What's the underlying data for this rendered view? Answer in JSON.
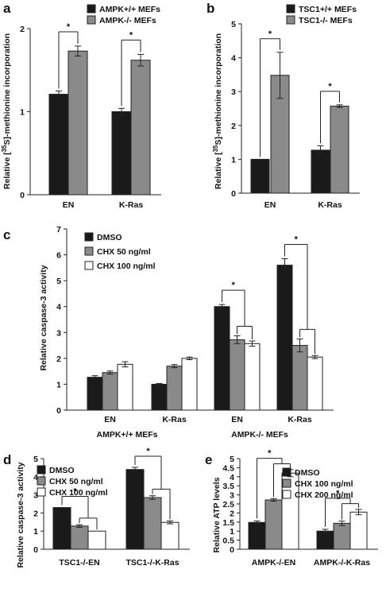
{
  "colors": {
    "black": "#1a1a1a",
    "gray": "#8a8a8a",
    "white": "#ffffff",
    "axis": "#222222"
  },
  "chart_data": [
    {
      "panel": "a",
      "type": "bar",
      "categories": [
        "EN",
        "K-Ras"
      ],
      "series": [
        {
          "name": "AMPK+/+ MEFs",
          "values": [
            1.21,
            1.0
          ],
          "errors": [
            0.04,
            0.04
          ]
        },
        {
          "name": "AMPK-/- MEFs",
          "values": [
            1.73,
            1.62
          ],
          "errors": [
            0.06,
            0.07
          ]
        }
      ],
      "ylabel_parts": [
        "Relative [",
        "35",
        "S]-methionine incorporation"
      ],
      "ylim": [
        0,
        2
      ],
      "yticks": [
        "0",
        "1",
        "2"
      ],
      "legend": "top",
      "grid": false,
      "significance": [
        "*",
        "*"
      ]
    },
    {
      "panel": "b",
      "type": "bar",
      "categories": [
        "EN",
        "K-Ras"
      ],
      "series": [
        {
          "name": "TSC1+/+ MEFs",
          "values": [
            1.0,
            1.27
          ],
          "errors": [
            0.0,
            0.13
          ]
        },
        {
          "name": "TSC1-/- MEFs",
          "values": [
            3.48,
            2.57
          ],
          "errors": [
            0.68,
            0.04
          ]
        }
      ],
      "ylabel_parts": [
        "Relative [",
        "35",
        "S]-methionine incorporation"
      ],
      "ylim": [
        0,
        5
      ],
      "yticks": [
        "0",
        "1",
        "2",
        "3",
        "4",
        "5"
      ],
      "legend": "top",
      "grid": false,
      "significance": [
        "*",
        "*"
      ]
    },
    {
      "panel": "c",
      "type": "bar",
      "categories": [
        "EN",
        "K-Ras",
        "EN",
        "K-Ras"
      ],
      "groups": [
        "AMPK+/+ MEFs",
        "AMPK-/- MEFs"
      ],
      "series": [
        {
          "name": "DMSO",
          "values": [
            1.27,
            1.0,
            4.0,
            5.6
          ],
          "errors": [
            0.06,
            0.03,
            0.08,
            0.25
          ]
        },
        {
          "name": "CHX 50 ng/ml",
          "values": [
            1.45,
            1.7,
            2.72,
            2.5
          ],
          "errors": [
            0.06,
            0.06,
            0.15,
            0.25
          ]
        },
        {
          "name": "CHX 100 ng/ml",
          "values": [
            1.77,
            2.0,
            2.57,
            2.05
          ],
          "errors": [
            0.1,
            0.05,
            0.1,
            0.06
          ]
        }
      ],
      "ylabel": "Relative caspase-3 activity",
      "ylim": [
        0,
        7
      ],
      "yticks": [
        "0",
        "1",
        "2",
        "3",
        "4",
        "5",
        "6",
        "7"
      ],
      "legend": "top-left",
      "grid": false,
      "significance": [
        "*",
        "*"
      ]
    },
    {
      "panel": "d",
      "type": "bar",
      "categories": [
        "TSC1-/-EN",
        "TSC1-/-K-Ras"
      ],
      "series": [
        {
          "name": "DMSO",
          "values": [
            2.3,
            4.4
          ],
          "errors": [
            0.0,
            0.12
          ]
        },
        {
          "name": "CHX 50 ng/ml",
          "values": [
            1.28,
            2.85
          ],
          "errors": [
            0.07,
            0.1
          ]
        },
        {
          "name": "CHX 100 ng/ml",
          "values": [
            1.0,
            1.48
          ],
          "errors": [
            0.0,
            0.08
          ]
        }
      ],
      "ylabel": "Relative caspase-3 activity",
      "ylim": [
        0,
        5
      ],
      "yticks": [
        "0",
        "1",
        "2",
        "3",
        "4",
        "5"
      ],
      "legend": "top-left",
      "grid": false,
      "significance": [
        "*",
        "*"
      ]
    },
    {
      "panel": "e",
      "type": "bar",
      "categories": [
        "AMPK-/-EN",
        "AMPK-/-K-Ras"
      ],
      "series": [
        {
          "name": "DMSO",
          "values": [
            1.48,
            1.0
          ],
          "errors": [
            0.08,
            0.1
          ]
        },
        {
          "name": "CHX 100 ng/ml",
          "values": [
            2.72,
            1.43
          ],
          "errors": [
            0.07,
            0.12
          ]
        },
        {
          "name": "CHX 200 ng/ml",
          "values": [
            4.2,
            2.05
          ],
          "errors": [
            0.2,
            0.15
          ]
        }
      ],
      "ylabel": "Relative ATP levels",
      "ylim": [
        0,
        5
      ],
      "yticks": [
        "0",
        "0.5",
        "1",
        "1.5",
        "2",
        "2.5",
        "3",
        "3.5",
        "4",
        "4.5",
        "5"
      ],
      "legend": "top-right",
      "grid": false,
      "significance": [
        "*",
        "*"
      ]
    }
  ]
}
